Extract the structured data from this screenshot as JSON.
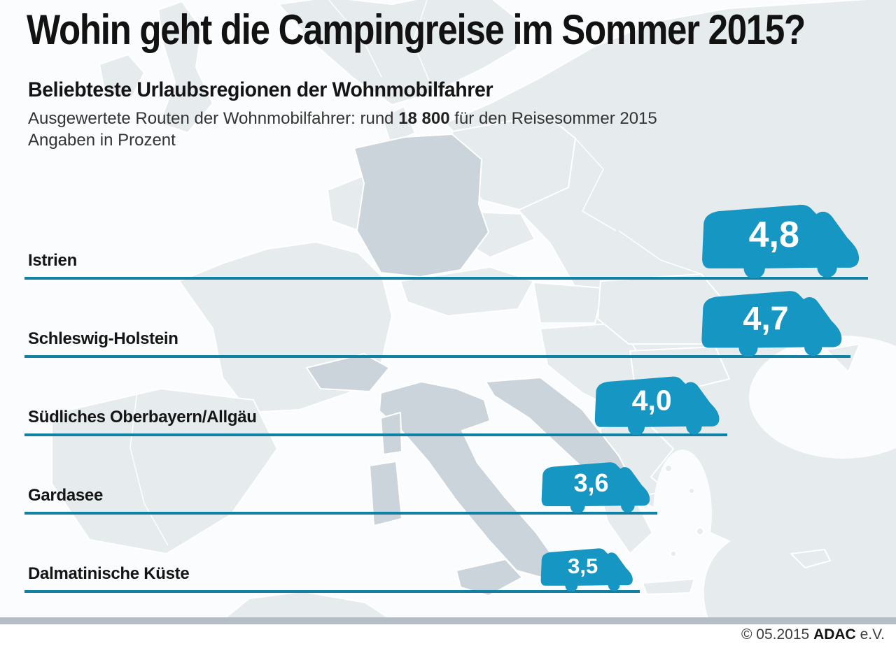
{
  "header": {
    "title": "Wohin geht die Campingreise im Sommer 2015?",
    "subtitle": "Beliebteste Urlaubsregionen der Wohnmobilfahrer",
    "description_prefix": "Ausgewertete Routen der Wohnmobilfahrer: rund ",
    "description_bold": "18 800",
    "description_suffix": " für den Reisesommer 2015",
    "unit_note": "Angaben in Prozent"
  },
  "chart_data": {
    "type": "bar",
    "orientation": "horizontal",
    "title": "Beliebteste Urlaubsregionen der Wohnmobilfahrer",
    "unit": "Prozent",
    "categories": [
      "Istrien",
      "Schleswig-Holstein",
      "Südliches Oberbayern/Allgäu",
      "Gardasee",
      "Dalmatinische Küste"
    ],
    "values": [
      4.8,
      4.7,
      4.0,
      3.6,
      3.5
    ],
    "value_labels": [
      "4,8",
      "4,7",
      "4,0",
      "3,6",
      "3,5"
    ],
    "xlabel": "",
    "ylabel": "",
    "xlim": [
      0,
      5.1
    ],
    "grid": false,
    "legend": false,
    "marker": "camper-van-icon",
    "colors": {
      "van": "#1696c3",
      "line": "#1180a2",
      "value_text": "#ffffff"
    }
  },
  "map": {
    "sea": "#fbfcfd",
    "land": "#e6ebee",
    "land_dark": "#cbd4db",
    "border": "#ffffff",
    "strip": "#b4bdc5"
  },
  "footer": {
    "copyright_prefix": "© 05.2015 ",
    "brand": "ADAC",
    "suffix": " e.V."
  }
}
